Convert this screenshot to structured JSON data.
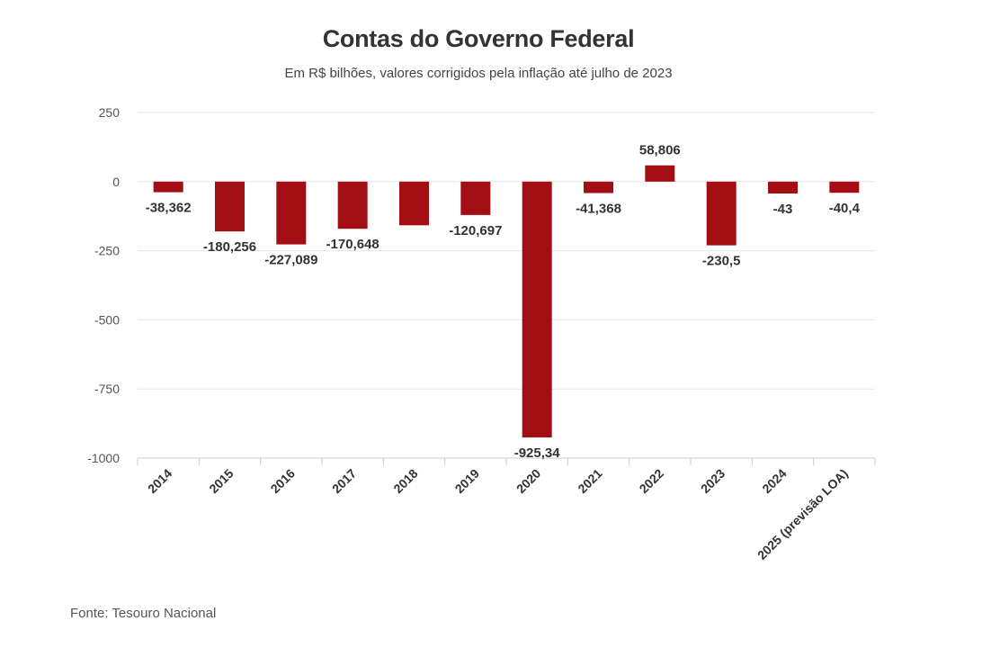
{
  "chart_data": {
    "type": "bar",
    "title": "Contas do Governo Federal",
    "subtitle": "Em R$ bilhões, valores corrigidos pela inflação até julho de 2023",
    "categories": [
      "2014",
      "2015",
      "2016",
      "2017",
      "2018",
      "2019",
      "2020",
      "2021",
      "2022",
      "2023",
      "2024",
      "2025 (previsão LOA)"
    ],
    "values": [
      -38.362,
      -180.256,
      -227.089,
      -170.648,
      -158,
      -120.697,
      -925.34,
      -41.368,
      58.806,
      -230.5,
      -43,
      -40.4
    ],
    "data_labels": [
      "-38,362",
      "-180,256",
      "-227,089",
      "-170,648",
      "",
      "-120,697",
      "-925,34",
      "-41,368",
      "58,806",
      "-230,5",
      "-43",
      "-40,4"
    ],
    "ylim": [
      -1000,
      250
    ],
    "yticks": [
      250,
      0,
      -250,
      -500,
      -750,
      -1000
    ],
    "ytick_labels": [
      "250",
      "0",
      "-250",
      "-500",
      "-750",
      "-1000"
    ],
    "xlabel": "",
    "ylabel": "",
    "bar_color": "#a30e15",
    "grid": true,
    "source": "Fonte: Tesouro Nacional"
  }
}
